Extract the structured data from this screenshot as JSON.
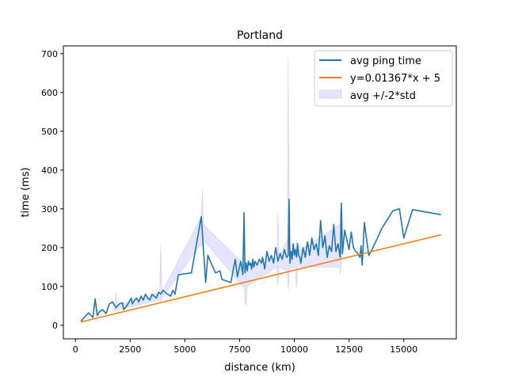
{
  "chart_data": {
    "type": "line",
    "title": "Portland",
    "xlabel": "distance (km)",
    "ylabel": "time (ms)",
    "xlim": [
      -550,
      17400
    ],
    "ylim": [
      -35,
      720
    ],
    "x_ticks": [
      0,
      2500,
      5000,
      7500,
      10000,
      12500,
      15000
    ],
    "x_tick_labels": [
      "0",
      "2500",
      "5000",
      "7500",
      "10000",
      "12500",
      "15000"
    ],
    "y_ticks": [
      0,
      100,
      200,
      300,
      400,
      500,
      600,
      700
    ],
    "y_tick_labels": [
      "0",
      "100",
      "200",
      "300",
      "400",
      "500",
      "600",
      "700"
    ],
    "grid": false,
    "legend_position": "top-right",
    "legend": [
      {
        "label": "avg ping time",
        "kind": "line",
        "color": "#1f77b4"
      },
      {
        "label": "y=0.01367*x + 5",
        "kind": "line",
        "color": "#ff7f0e"
      },
      {
        "label": "avg +/-2*std",
        "kind": "band",
        "color": "#0000ff"
      }
    ],
    "series": [
      {
        "name": "avg ping time",
        "type": "line",
        "color": "#1f77b4",
        "x": [
          250,
          400,
          600,
          800,
          900,
          1000,
          1100,
          1250,
          1400,
          1550,
          1700,
          1850,
          2000,
          2150,
          2200,
          2350,
          2450,
          2550,
          2600,
          2700,
          2800,
          2900,
          3000,
          3100,
          3200,
          3300,
          3400,
          3500,
          3600,
          3700,
          3800,
          3900,
          4000,
          4100,
          4200,
          4350,
          4450,
          4550,
          4700,
          5300,
          5750,
          5950,
          6050,
          6200,
          6400,
          6600,
          6700,
          7100,
          7300,
          7400,
          7550,
          7650,
          7700,
          7750,
          7800,
          7850,
          7900,
          7950,
          8000,
          8050,
          8100,
          8150,
          8200,
          8300,
          8400,
          8500,
          8550,
          8650,
          8750,
          8850,
          8950,
          9050,
          9150,
          9250,
          9350,
          9450,
          9550,
          9650,
          9720,
          9760,
          9800,
          9850,
          9900,
          9950,
          10000,
          10050,
          10100,
          10150,
          10200,
          10250,
          10300,
          10400,
          10500,
          10600,
          10700,
          10800,
          10900,
          11000,
          11100,
          11200,
          11300,
          11400,
          11500,
          11600,
          11700,
          11800,
          11900,
          12000,
          12100,
          12150,
          12200,
          12300,
          12400,
          12500,
          12600,
          12700,
          12800,
          12900,
          13000,
          13050,
          13100,
          13200,
          13400,
          13550,
          14000,
          14500,
          14800,
          15000,
          15400,
          16700
        ],
        "y": [
          10,
          20,
          32,
          20,
          68,
          25,
          35,
          40,
          30,
          55,
          60,
          45,
          55,
          58,
          40,
          50,
          60,
          70,
          55,
          65,
          70,
          60,
          75,
          65,
          80,
          70,
          65,
          80,
          75,
          70,
          85,
          80,
          90,
          85,
          80,
          75,
          90,
          80,
          130,
          135,
          280,
          110,
          180,
          160,
          135,
          140,
          118,
          110,
          170,
          125,
          165,
          130,
          290,
          135,
          160,
          140,
          165,
          155,
          160,
          145,
          170,
          150,
          165,
          155,
          170,
          160,
          175,
          145,
          190,
          165,
          180,
          160,
          200,
          165,
          185,
          170,
          195,
          175,
          180,
          325,
          160,
          190,
          170,
          210,
          180,
          195,
          175,
          210,
          180,
          175,
          160,
          200,
          175,
          215,
          180,
          225,
          195,
          210,
          180,
          270,
          200,
          230,
          175,
          205,
          190,
          260,
          190,
          210,
          175,
          315,
          185,
          245,
          220,
          195,
          240,
          200,
          190,
          185,
          175,
          205,
          155,
          265,
          180,
          195,
          250,
          295,
          300,
          225,
          298,
          285
        ]
      },
      {
        "name": "y=0.01367*x + 5",
        "type": "line",
        "color": "#ff7f0e",
        "x": [
          250,
          16700
        ],
        "y": [
          8.4,
          233.3
        ]
      }
    ],
    "std_band": {
      "name": "avg +/-2*std",
      "color": "#0000ff",
      "opacity": 0.1,
      "x": [
        1800,
        1850,
        1900,
        3850,
        3900,
        3950,
        5750,
        5800,
        5850,
        7650,
        7700,
        7750,
        7800,
        7850,
        9200,
        9250,
        9300,
        9680,
        9720,
        9760,
        9800,
        10050,
        10100,
        10150,
        12080,
        12100,
        12150
      ],
      "upper": [
        45,
        85,
        50,
        85,
        210,
        85,
        280,
        350,
        260,
        160,
        295,
        140,
        120,
        150,
        175,
        290,
        175,
        220,
        690,
        230,
        190,
        200,
        220,
        190,
        260,
        300,
        250
      ],
      "lower": [
        40,
        35,
        40,
        65,
        60,
        70,
        210,
        200,
        220,
        100,
        100,
        60,
        50,
        100,
        150,
        100,
        150,
        140,
        90,
        120,
        150,
        150,
        95,
        150,
        150,
        130,
        160
      ]
    }
  }
}
